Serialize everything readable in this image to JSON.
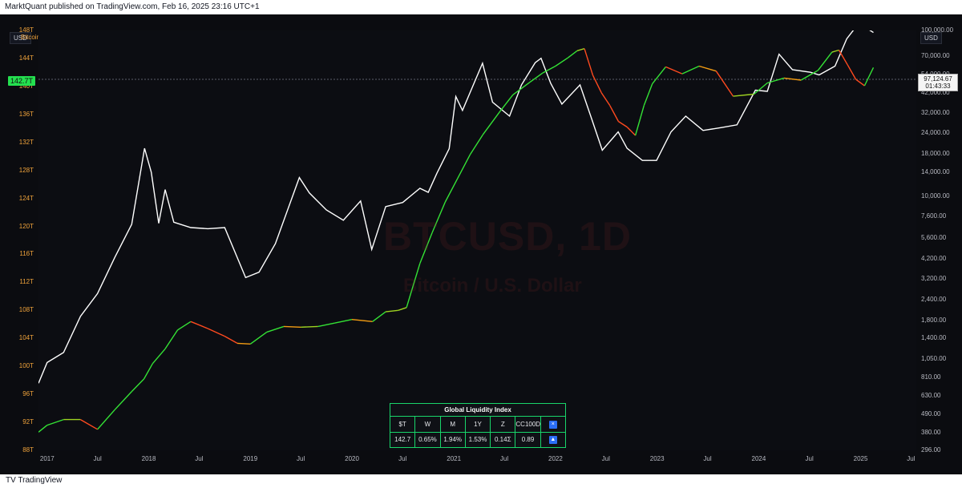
{
  "topbar": {
    "text": "MarktQuant published on TradingView.com, Feb 16, 2025 23:16 UTC+1"
  },
  "header": {
    "left_currency": "USD",
    "right_currency": "USD",
    "symbol_label": "Bitcoin / U.S. Dollar, 1D, INDEX",
    "watermark_ticker": "BTCUSD, 1D",
    "watermark_name": "Bitcoin / U.S. Dollar"
  },
  "left_axis": {
    "ticks": [
      "148T",
      "144T",
      "140T",
      "136T",
      "132T",
      "128T",
      "124T",
      "120T",
      "116T",
      "112T",
      "108T",
      "104T",
      "100T",
      "96T",
      "92T",
      "88T"
    ],
    "current_tag": "142.7T"
  },
  "right_axis": {
    "ticks": [
      "100,000.00",
      "70,000.00",
      "54,000.00",
      "42,000.00",
      "32,000.00",
      "24,000.00",
      "18,000.00",
      "14,000.00",
      "10,000.00",
      "7,600.00",
      "5,600.00",
      "4,200.00",
      "3,200.00",
      "2,400.00",
      "1,800.00",
      "1,400.00",
      "1,050.00",
      "810.00",
      "630.00",
      "490.00",
      "380.00",
      "296.00"
    ],
    "price_value": "97,124.67",
    "price_time": "01:43:33"
  },
  "x_axis": {
    "labels": [
      "2017",
      "Jul",
      "2018",
      "Jul",
      "2019",
      "Jul",
      "2020",
      "Jul",
      "2021",
      "Jul",
      "2022",
      "Jul",
      "2023",
      "Jul",
      "2024",
      "Jul",
      "2025",
      "Jul"
    ]
  },
  "table": {
    "title": "Global Liquidity Index",
    "headers": [
      "$T",
      "W",
      "M",
      "1Y",
      "Z",
      "CC100D",
      ""
    ],
    "values": [
      "142.7",
      "0.65%",
      "1.94%",
      "1.53%",
      "0.14Σ",
      "0.89",
      ""
    ]
  },
  "chart_data": [
    {
      "type": "line",
      "title": "Bitcoin / U.S. Dollar, 1D, INDEX",
      "x": [
        "2016-12-01",
        "2017-01-01",
        "2017-03-01",
        "2017-05-01",
        "2017-07-01",
        "2017-09-01",
        "2017-11-01",
        "2017-12-17",
        "2018-01-10",
        "2018-02-06",
        "2018-03-01",
        "2018-04-01",
        "2018-06-01",
        "2018-08-01",
        "2018-10-01",
        "2018-12-15",
        "2019-02-01",
        "2019-04-01",
        "2019-06-26",
        "2019-08-01",
        "2019-10-01",
        "2019-12-01",
        "2020-02-01",
        "2020-03-12",
        "2020-05-01",
        "2020-07-01",
        "2020-09-01",
        "2020-10-01",
        "2020-11-01",
        "2020-12-15",
        "2021-01-08",
        "2021-02-01",
        "2021-04-14",
        "2021-05-20",
        "2021-07-20",
        "2021-09-01",
        "2021-10-20",
        "2021-11-10",
        "2021-12-15",
        "2022-01-24",
        "2022-03-30",
        "2022-05-12",
        "2022-06-18",
        "2022-08-14",
        "2022-09-15",
        "2022-11-09",
        "2022-12-30",
        "2023-02-20",
        "2023-04-14",
        "2023-06-15",
        "2023-08-20",
        "2023-10-15",
        "2023-12-20",
        "2024-02-01",
        "2024-03-14",
        "2024-05-01",
        "2024-07-05",
        "2024-08-05",
        "2024-10-01",
        "2024-11-12",
        "2024-12-17",
        "2025-01-20",
        "2025-02-16"
      ],
      "values": [
        750,
        1000,
        1150,
        1900,
        2600,
        4300,
        6800,
        19500,
        14000,
        6900,
        11000,
        7000,
        6500,
        6400,
        6500,
        3250,
        3500,
        5200,
        13000,
        10500,
        8300,
        7200,
        9400,
        4800,
        8700,
        9200,
        11200,
        10600,
        13800,
        19400,
        40000,
        33000,
        63500,
        37000,
        30500,
        47000,
        64000,
        68000,
        48000,
        36000,
        47000,
        29000,
        19000,
        24500,
        19500,
        16500,
        16500,
        24500,
        30500,
        25000,
        26000,
        27000,
        43700,
        43000,
        72000,
        58000,
        56000,
        54000,
        61000,
        89000,
        106000,
        104000,
        97124.67
      ],
      "ylim": [
        296,
        100000
      ],
      "scale": "log",
      "color": "#ffffff"
    },
    {
      "type": "line",
      "title": "Global Liquidity Index",
      "x": [
        "2016-12-01",
        "2017-01-01",
        "2017-03-01",
        "2017-05-01",
        "2017-07-01",
        "2017-09-01",
        "2017-11-01",
        "2017-12-15",
        "2018-01-15",
        "2018-03-01",
        "2018-04-15",
        "2018-06-01",
        "2018-08-01",
        "2018-10-01",
        "2018-11-15",
        "2019-01-01",
        "2019-03-01",
        "2019-05-01",
        "2019-07-01",
        "2019-09-01",
        "2019-11-01",
        "2020-01-01",
        "2020-03-15",
        "2020-05-01",
        "2020-06-15",
        "2020-07-15",
        "2020-09-01",
        "2020-10-15",
        "2020-12-01",
        "2021-01-15",
        "2021-03-01",
        "2021-04-15",
        "2021-06-15",
        "2021-08-01",
        "2021-10-01",
        "2021-11-15",
        "2022-01-01",
        "2022-02-15",
        "2022-03-20",
        "2022-04-15",
        "2022-05-15",
        "2022-06-15",
        "2022-07-15",
        "2022-08-15",
        "2022-09-15",
        "2022-10-15",
        "2022-11-15",
        "2022-12-15",
        "2023-02-01",
        "2023-04-01",
        "2023-06-01",
        "2023-08-01",
        "2023-10-01",
        "2023-12-15",
        "2024-02-01",
        "2024-04-01",
        "2024-06-01",
        "2024-08-01",
        "2024-09-20",
        "2024-10-15",
        "2024-11-15",
        "2024-12-15",
        "2025-01-15",
        "2025-02-16"
      ],
      "values": [
        90.6,
        91.6,
        92.4,
        92.4,
        91.0,
        93.8,
        96.4,
        98.2,
        100.4,
        102.5,
        105.2,
        106.4,
        105.4,
        104.3,
        103.3,
        103.2,
        104.9,
        105.7,
        105.6,
        105.7,
        106.2,
        106.7,
        106.4,
        107.8,
        108.0,
        108.4,
        114.7,
        119.1,
        123.5,
        126.9,
        130.3,
        133.1,
        136.4,
        138.8,
        140.6,
        141.9,
        142.9,
        144.1,
        145.1,
        145.4,
        141.6,
        139.1,
        137.3,
        135.0,
        134.2,
        133.0,
        137.3,
        140.4,
        142.8,
        141.8,
        142.9,
        142.2,
        138.6,
        138.9,
        140.5,
        141.2,
        140.9,
        142.3,
        144.9,
        145.2,
        143.1,
        141.0,
        140.1,
        142.7
      ],
      "ylim": [
        88,
        148
      ],
      "units": "T"
    }
  ]
}
